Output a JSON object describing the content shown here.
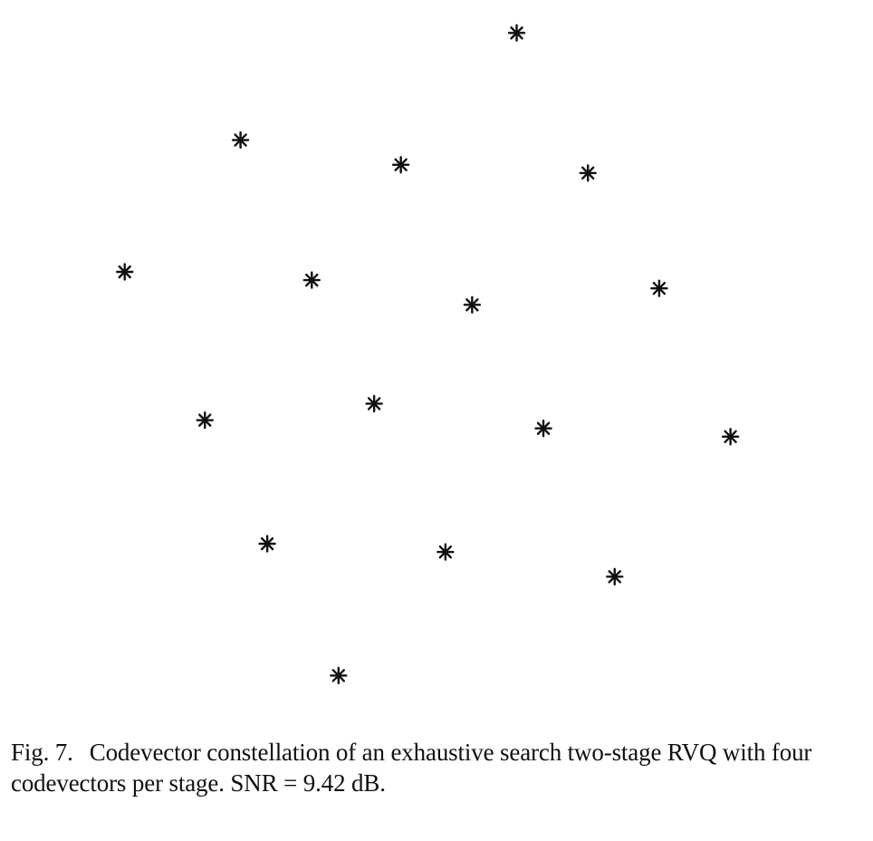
{
  "chart_data": {
    "type": "scatter",
    "title": "",
    "xlabel": "",
    "ylabel": "",
    "grid": false,
    "axes_visible": false,
    "marker": "asterisk",
    "marker_color": "#111111",
    "xlim": [
      -0.75,
      4.15
    ],
    "ylim": [
      -0.25,
      4.15
    ],
    "points": [
      {
        "x": 2.15,
        "y": 3.95
      },
      {
        "x": 0.6,
        "y": 3.3
      },
      {
        "x": 1.5,
        "y": 3.15
      },
      {
        "x": 2.55,
        "y": 3.1
      },
      {
        "x": -0.05,
        "y": 2.5
      },
      {
        "x": 1.0,
        "y": 2.45
      },
      {
        "x": 1.9,
        "y": 2.3
      },
      {
        "x": 2.95,
        "y": 2.4
      },
      {
        "x": 0.4,
        "y": 1.6
      },
      {
        "x": 1.35,
        "y": 1.7
      },
      {
        "x": 2.3,
        "y": 1.55
      },
      {
        "x": 3.35,
        "y": 1.5
      },
      {
        "x": 0.75,
        "y": 0.85
      },
      {
        "x": 1.75,
        "y": 0.8
      },
      {
        "x": 2.7,
        "y": 0.65
      },
      {
        "x": 1.15,
        "y": 0.05
      }
    ]
  },
  "caption": {
    "label": "Fig. 7.",
    "text": "Codevector constellation of an exhaustive search two-stage RVQ with four codevectors per stage. SNR = 9.42 dB."
  }
}
